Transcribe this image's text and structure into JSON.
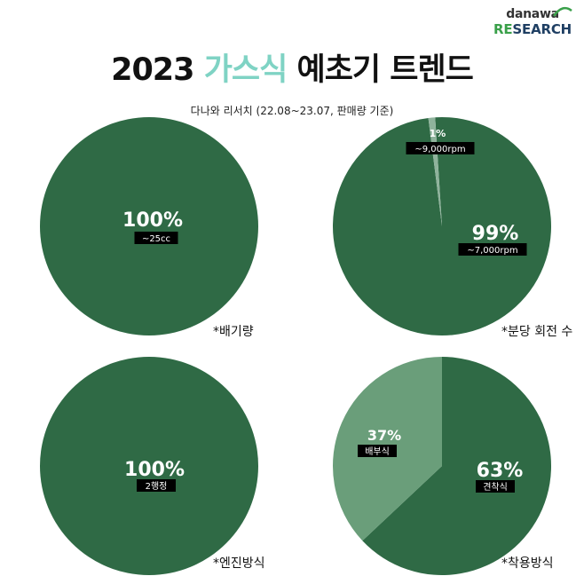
{
  "logo": {
    "top": "danawa",
    "bottom_re": "RE",
    "bottom_rest": "SEARCH"
  },
  "title": {
    "year": "2023",
    "accent": "가스식",
    "rest": "예초기 트렌드"
  },
  "subtitle": "다나와 리서치 (22.08~23.07, 판매량 기준)",
  "colors": {
    "dark_green": "#2f6a45",
    "light_green": "#6a9e7a",
    "accent": "#7fd3c4"
  },
  "chart_data": [
    {
      "type": "pie",
      "caption": "*배기량",
      "slices": [
        {
          "label": "~25cc",
          "value": 100,
          "pct_text": "100%",
          "color": "#2f6a45"
        }
      ]
    },
    {
      "type": "pie",
      "caption": "*분당 회전 수",
      "slices": [
        {
          "label": "~7,000rpm",
          "value": 99,
          "pct_text": "99%",
          "color": "#2f6a45"
        },
        {
          "label": "~9,000rpm",
          "value": 1,
          "pct_text": "1%",
          "color": "#8fb39c"
        }
      ]
    },
    {
      "type": "pie",
      "caption": "*엔진방식",
      "slices": [
        {
          "label": "2행정",
          "value": 100,
          "pct_text": "100%",
          "color": "#2f6a45"
        }
      ]
    },
    {
      "type": "pie",
      "caption": "*착용방식",
      "slices": [
        {
          "label": "견착식",
          "value": 63,
          "pct_text": "63%",
          "color": "#2f6a45"
        },
        {
          "label": "배부식",
          "value": 37,
          "pct_text": "37%",
          "color": "#6a9e7a"
        }
      ]
    }
  ]
}
